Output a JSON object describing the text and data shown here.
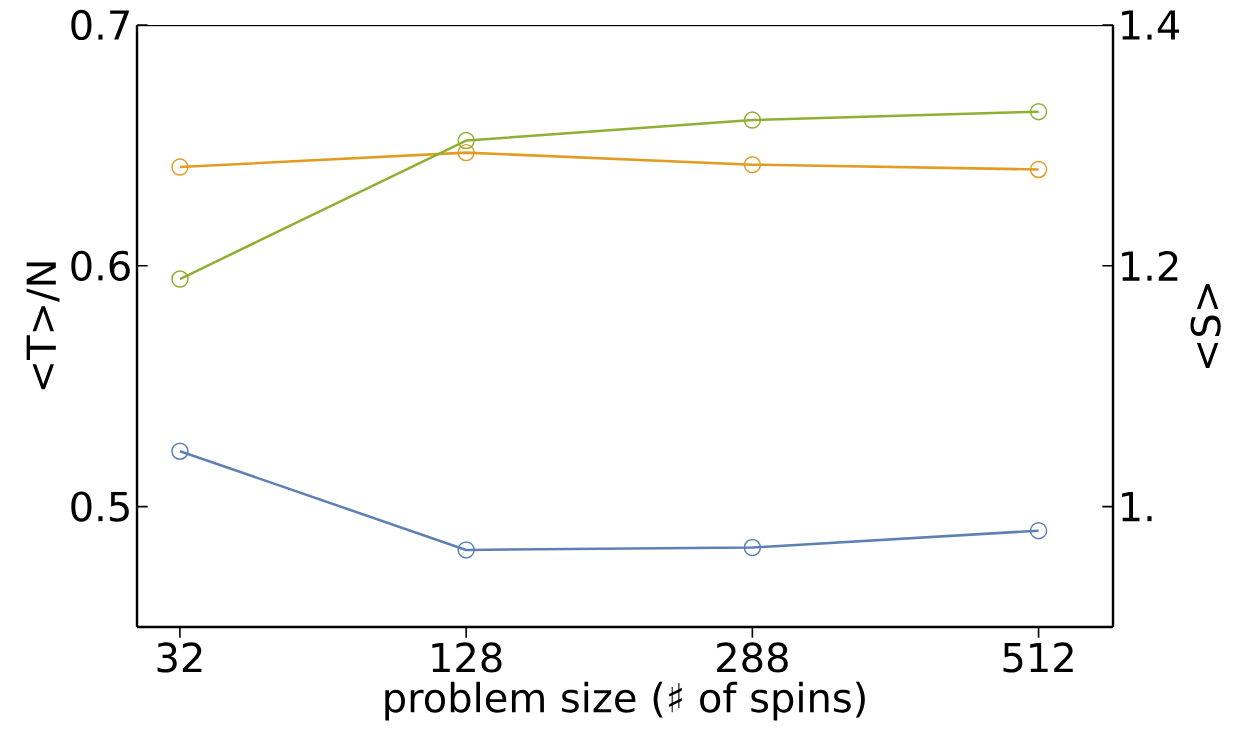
{
  "chart_data": {
    "type": "line",
    "xlabel": "problem size (♯ of spins)",
    "ylabel": "<T>/N",
    "y2label": "<S>",
    "categories": [
      "32",
      "128",
      "288",
      "512"
    ],
    "ylim": [
      0.45,
      0.7
    ],
    "yticks": [
      0.5,
      0.6,
      0.7
    ],
    "y2lim": [
      0.9,
      1.4
    ],
    "y2ticks": [
      {
        "value": 1.0,
        "label": "1."
      },
      1.2,
      1.4
    ],
    "marker": "circle",
    "line_style": "solid",
    "series": [
      {
        "color": "#5e81b5",
        "values": [
          0.523,
          0.482,
          0.483,
          0.49
        ]
      },
      {
        "color": "#e19c24",
        "values": [
          0.641,
          0.647,
          0.642,
          0.64
        ]
      },
      {
        "color": "#8fb032",
        "axis": "y2",
        "values": [
          1.189,
          1.304,
          1.321,
          1.328
        ]
      }
    ]
  }
}
